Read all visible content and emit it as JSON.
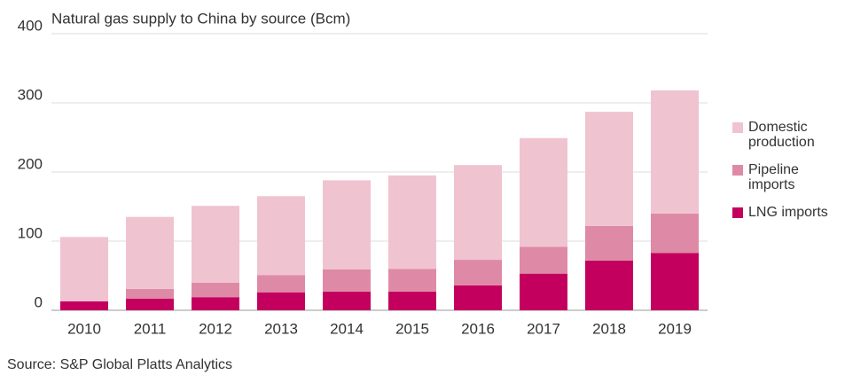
{
  "chart_data": {
    "type": "stacked_bar",
    "title": "Natural gas supply to China by source (Bcm)",
    "source": "Source: S&P Global Platts Analytics",
    "categories": [
      "2010",
      "2011",
      "2012",
      "2013",
      "2014",
      "2015",
      "2016",
      "2017",
      "2018",
      "2019"
    ],
    "series": [
      {
        "name": "LNG imports",
        "color": "#c4005f",
        "values": [
          13,
          17,
          19,
          26,
          27,
          27,
          36,
          53,
          72,
          83
        ]
      },
      {
        "name": "Pipeline imports",
        "color": "#de8aa6",
        "values": [
          0,
          14,
          21,
          25,
          32,
          33,
          37,
          39,
          50,
          57
        ]
      },
      {
        "name": "Domestic production",
        "color": "#f0c3d0",
        "values": [
          93,
          104,
          111,
          114,
          129,
          135,
          137,
          157,
          165,
          178
        ]
      }
    ],
    "ylim": [
      0,
      400
    ],
    "yticks": [
      0,
      100,
      200,
      300,
      400
    ],
    "grid": true,
    "legend": "right"
  }
}
